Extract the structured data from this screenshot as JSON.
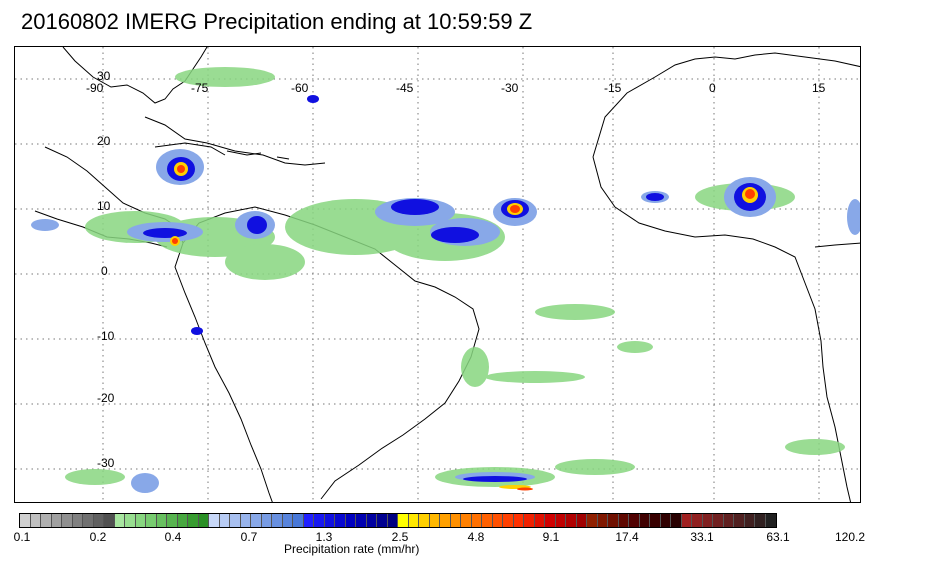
{
  "title": "20160802 IMERG Precipitation ending at 10:59:59 Z",
  "map": {
    "longitude_labels": [
      "-90",
      "-75",
      "-60",
      "-45",
      "-30",
      "-15",
      "0",
      "15"
    ],
    "latitude_labels": [
      "30",
      "20",
      "10",
      "0",
      "-10",
      "-20",
      "-30"
    ],
    "gridlines": "dotted",
    "features": [
      "coastlines",
      "precipitation-rate-field"
    ]
  },
  "colorbar": {
    "label": "Precipitation rate (mm/hr)",
    "tick_labels": [
      "0.1",
      "0.2",
      "0.4",
      "0.7",
      "1.3",
      "2.5",
      "4.8",
      "9.1",
      "17.4",
      "33.1",
      "63.1",
      "120.2"
    ],
    "colors": [
      "#d0d0d0",
      "#c0c0c0",
      "#b0b0b0",
      "#a0a0a0",
      "#909090",
      "#808080",
      "#707070",
      "#606060",
      "#505050",
      "#a8e6a0",
      "#98de90",
      "#88d680",
      "#78cc70",
      "#68c060",
      "#58b450",
      "#48a840",
      "#389c30",
      "#2a9025",
      "#c8d8f8",
      "#b8ccf4",
      "#a8c0f0",
      "#98b4ec",
      "#88a8e8",
      "#789ce4",
      "#6890e0",
      "#5884dc",
      "#4878d8",
      "#2020ff",
      "#1818f0",
      "#1010e0",
      "#0808d0",
      "#0000c0",
      "#0000b0",
      "#0000a0",
      "#000090",
      "#000080",
      "#ffff00",
      "#ffe800",
      "#ffd000",
      "#ffb800",
      "#ffa000",
      "#ff9000",
      "#ff8000",
      "#ff7000",
      "#ff6000",
      "#ff5000",
      "#ff4000",
      "#ff3000",
      "#f02000",
      "#e01000",
      "#d00000",
      "#c00000",
      "#b00000",
      "#a00000",
      "#902000",
      "#801800",
      "#701000",
      "#600800",
      "#500000",
      "#400000",
      "#380000",
      "#300000",
      "#280000",
      "#a02020",
      "#902020",
      "#802020",
      "#702020",
      "#602020",
      "#502020",
      "#402020",
      "#302020",
      "#202020"
    ]
  }
}
